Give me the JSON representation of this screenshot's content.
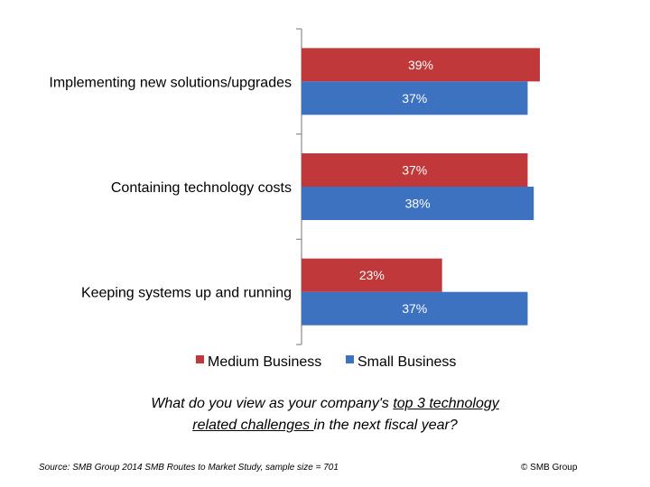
{
  "chart_data": {
    "type": "bar",
    "orientation": "horizontal",
    "categories": [
      "Implementing new solutions/upgrades",
      "Containing technology costs",
      "Keeping systems up and running"
    ],
    "series": [
      {
        "name": "Medium Business",
        "values": [
          39,
          37,
          23
        ],
        "color": "#c0383a"
      },
      {
        "name": "Small Business",
        "values": [
          37,
          38,
          37
        ],
        "color": "#3c72c0"
      }
    ],
    "value_suffix": "%",
    "xlim": [
      0,
      40
    ],
    "grid": false,
    "legend_position": "bottom"
  },
  "question": {
    "prefix": "What do you view as your company's ",
    "underline_1": "top 3 technology",
    "underline_2": "related challenges ",
    "suffix": "in the next fiscal year?"
  },
  "source": "Source: SMB Group 2014 SMB Routes to Market Study, sample size = 701",
  "copyright": "© SMB Group"
}
